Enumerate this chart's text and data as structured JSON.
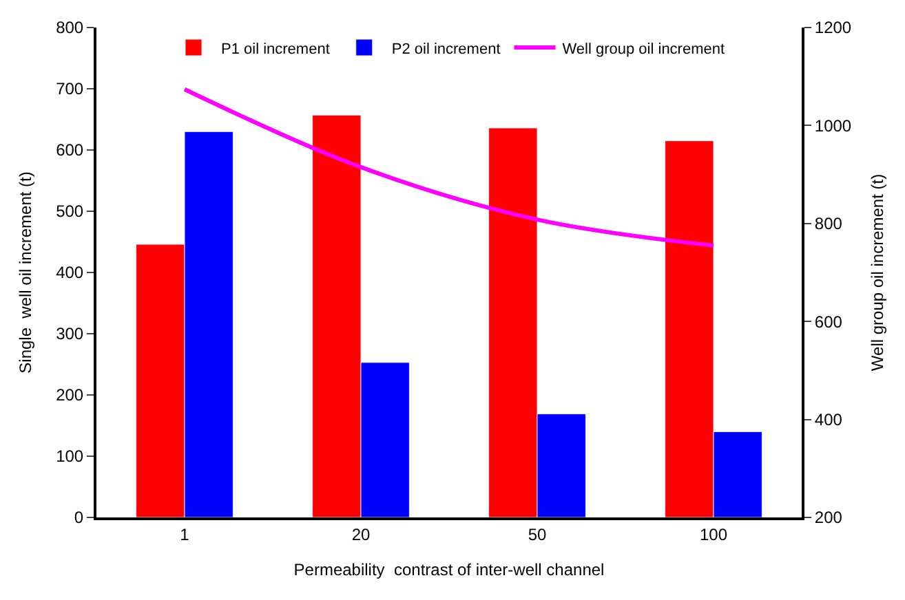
{
  "chart_data": {
    "type": "bar",
    "categories": [
      "1",
      "20",
      "50",
      "100"
    ],
    "xlabel": "Permeability  contrast of inter-well channel",
    "ylabel": "Single  well oil increment (t)",
    "y2label": "Well group oil increment (t)",
    "series": [
      {
        "name": "P1 oil increment",
        "color": "#ff0000",
        "values": [
          446,
          657,
          636,
          615
        ]
      },
      {
        "name": "P2 oil increment",
        "color": "#0000ff",
        "values": [
          630,
          253,
          169,
          140
        ]
      },
      {
        "name": "Well group oil increment",
        "color": "#ff00ff",
        "type": "line",
        "axis": "y2",
        "values": [
          1074,
          915,
          808,
          755
        ]
      }
    ],
    "ylim": [
      0,
      800
    ],
    "yticks": [
      0,
      100,
      200,
      300,
      400,
      500,
      600,
      700,
      800
    ],
    "y2lim": [
      200,
      1200
    ],
    "y2ticks": [
      200,
      400,
      600,
      800,
      1000,
      1200
    ],
    "legend": "top",
    "marker": "none"
  }
}
